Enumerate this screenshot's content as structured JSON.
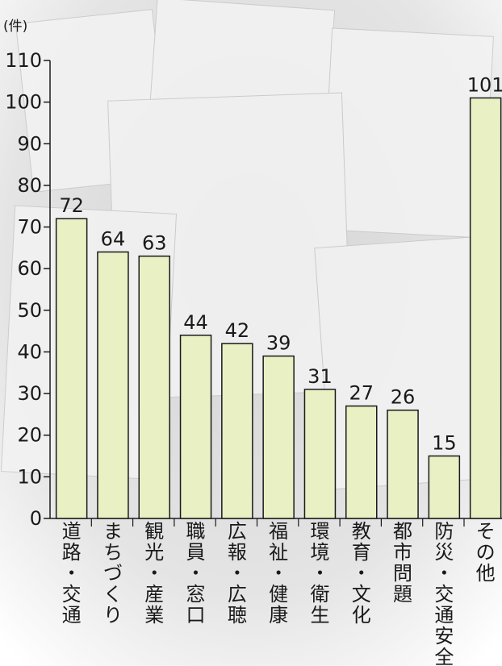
{
  "chart_data": {
    "type": "bar",
    "unit_label": "(件)",
    "categories": [
      "道路・交通",
      "まちづくり",
      "観光・産業",
      "職員・窓口",
      "広報・広聴",
      "福祉・健康",
      "環境・衛生",
      "教育・文化",
      "都市問題",
      "防災・交通安全",
      "その他"
    ],
    "values": [
      72,
      64,
      63,
      44,
      42,
      39,
      31,
      27,
      26,
      15,
      101
    ],
    "ylim": [
      0,
      110
    ],
    "yticks": [
      0,
      10,
      20,
      30,
      40,
      50,
      60,
      70,
      80,
      90,
      100,
      110
    ],
    "grid": false,
    "bar_color": "#e8f0c4",
    "bar_outline_color": "#1a1a1a",
    "background_color": "#e9e9e9"
  }
}
